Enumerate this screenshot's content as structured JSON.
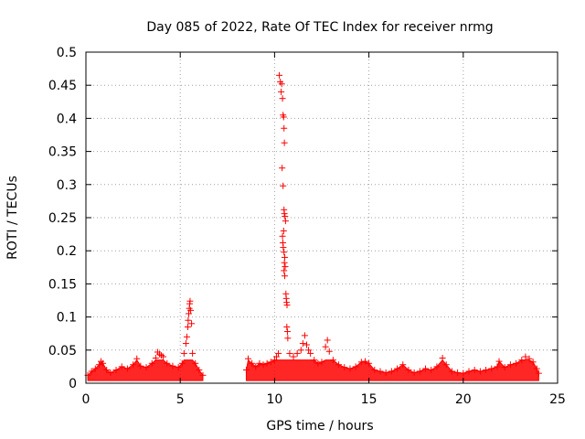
{
  "chart_data": {
    "type": "scatter",
    "title": "Day 085 of 2022, Rate Of TEC Index for receiver nrmg",
    "xlabel": "GPS time / hours",
    "ylabel": "ROTI / TECUs",
    "xlim": [
      0,
      25
    ],
    "ylim": [
      0,
      0.5
    ],
    "xticks": [
      0,
      5,
      10,
      15,
      20,
      25
    ],
    "yticks": [
      0,
      0.05,
      0.1,
      0.15,
      0.2,
      0.25,
      0.3,
      0.35,
      0.4,
      0.45,
      0.5
    ],
    "xtick_labels": [
      "0",
      "5",
      "10",
      "15",
      "20",
      "25"
    ],
    "ytick_labels": [
      "0",
      "0.05",
      "0.1",
      "0.15",
      "0.2",
      "0.25",
      "0.3",
      "0.35",
      "0.4",
      "0.45",
      "0.5"
    ],
    "grid": true,
    "marker": "+",
    "color": "#ff0000",
    "data_gap_hours": [
      6.3,
      8.4
    ],
    "series": [
      {
        "name": "ROTI",
        "points": [
          [
            0.1,
            0.012
          ],
          [
            0.3,
            0.018
          ],
          [
            0.5,
            0.022
          ],
          [
            0.7,
            0.028
          ],
          [
            0.8,
            0.033
          ],
          [
            0.9,
            0.03
          ],
          [
            1.1,
            0.02
          ],
          [
            1.3,
            0.016
          ],
          [
            1.6,
            0.02
          ],
          [
            1.9,
            0.025
          ],
          [
            2.2,
            0.022
          ],
          [
            2.5,
            0.028
          ],
          [
            2.7,
            0.037
          ],
          [
            2.9,
            0.026
          ],
          [
            3.2,
            0.024
          ],
          [
            3.5,
            0.03
          ],
          [
            3.7,
            0.038
          ],
          [
            3.8,
            0.047
          ],
          [
            3.9,
            0.044
          ],
          [
            4.0,
            0.042
          ],
          [
            4.1,
            0.04
          ],
          [
            4.3,
            0.03
          ],
          [
            4.6,
            0.026
          ],
          [
            4.9,
            0.024
          ],
          [
            5.1,
            0.03
          ],
          [
            5.2,
            0.045
          ],
          [
            5.3,
            0.06
          ],
          [
            5.35,
            0.07
          ],
          [
            5.4,
            0.085
          ],
          [
            5.42,
            0.095
          ],
          [
            5.45,
            0.105
          ],
          [
            5.48,
            0.113
          ],
          [
            5.5,
            0.12
          ],
          [
            5.52,
            0.124
          ],
          [
            5.55,
            0.11
          ],
          [
            5.6,
            0.09
          ],
          [
            5.65,
            0.045
          ],
          [
            5.8,
            0.03
          ],
          [
            6.0,
            0.02
          ],
          [
            6.2,
            0.012
          ],
          [
            8.5,
            0.02
          ],
          [
            8.6,
            0.037
          ],
          [
            8.8,
            0.03
          ],
          [
            9.0,
            0.025
          ],
          [
            9.2,
            0.03
          ],
          [
            9.4,
            0.028
          ],
          [
            9.6,
            0.03
          ],
          [
            9.8,
            0.032
          ],
          [
            10.0,
            0.035
          ],
          [
            10.1,
            0.04
          ],
          [
            10.2,
            0.045
          ],
          [
            10.25,
            0.465
          ],
          [
            10.3,
            0.455
          ],
          [
            10.35,
            0.44
          ],
          [
            10.38,
            0.452
          ],
          [
            10.42,
            0.43
          ],
          [
            10.45,
            0.405
          ],
          [
            10.48,
            0.402
          ],
          [
            10.5,
            0.385
          ],
          [
            10.52,
            0.363
          ],
          [
            10.4,
            0.325
          ],
          [
            10.45,
            0.298
          ],
          [
            10.5,
            0.262
          ],
          [
            10.52,
            0.256
          ],
          [
            10.55,
            0.252
          ],
          [
            10.58,
            0.245
          ],
          [
            10.48,
            0.23
          ],
          [
            10.42,
            0.222
          ],
          [
            10.44,
            0.212
          ],
          [
            10.46,
            0.205
          ],
          [
            10.5,
            0.198
          ],
          [
            10.54,
            0.19
          ],
          [
            10.52,
            0.182
          ],
          [
            10.56,
            0.176
          ],
          [
            10.5,
            0.17
          ],
          [
            10.54,
            0.162
          ],
          [
            10.6,
            0.135
          ],
          [
            10.62,
            0.128
          ],
          [
            10.64,
            0.122
          ],
          [
            10.66,
            0.118
          ],
          [
            10.65,
            0.085
          ],
          [
            10.68,
            0.078
          ],
          [
            10.7,
            0.068
          ],
          [
            10.8,
            0.045
          ],
          [
            11.0,
            0.04
          ],
          [
            11.2,
            0.045
          ],
          [
            11.4,
            0.05
          ],
          [
            11.5,
            0.06
          ],
          [
            11.6,
            0.072
          ],
          [
            11.7,
            0.058
          ],
          [
            11.8,
            0.05
          ],
          [
            11.9,
            0.045
          ],
          [
            12.1,
            0.035
          ],
          [
            12.3,
            0.03
          ],
          [
            12.5,
            0.032
          ],
          [
            12.7,
            0.055
          ],
          [
            12.8,
            0.065
          ],
          [
            12.9,
            0.048
          ],
          [
            13.1,
            0.035
          ],
          [
            13.4,
            0.028
          ],
          [
            13.7,
            0.024
          ],
          [
            14.0,
            0.022
          ],
          [
            14.3,
            0.025
          ],
          [
            14.6,
            0.032
          ],
          [
            14.8,
            0.033
          ],
          [
            15.0,
            0.03
          ],
          [
            15.3,
            0.02
          ],
          [
            15.6,
            0.018
          ],
          [
            15.9,
            0.016
          ],
          [
            16.2,
            0.018
          ],
          [
            16.5,
            0.022
          ],
          [
            16.8,
            0.028
          ],
          [
            17.1,
            0.02
          ],
          [
            17.4,
            0.016
          ],
          [
            17.7,
            0.018
          ],
          [
            18.0,
            0.022
          ],
          [
            18.3,
            0.02
          ],
          [
            18.6,
            0.025
          ],
          [
            18.9,
            0.038
          ],
          [
            19.1,
            0.028
          ],
          [
            19.4,
            0.018
          ],
          [
            19.7,
            0.016
          ],
          [
            20.0,
            0.015
          ],
          [
            20.3,
            0.018
          ],
          [
            20.6,
            0.02
          ],
          [
            20.9,
            0.018
          ],
          [
            21.2,
            0.02
          ],
          [
            21.5,
            0.022
          ],
          [
            21.8,
            0.025
          ],
          [
            21.9,
            0.033
          ],
          [
            22.2,
            0.024
          ],
          [
            22.5,
            0.028
          ],
          [
            22.8,
            0.03
          ],
          [
            23.1,
            0.035
          ],
          [
            23.3,
            0.04
          ],
          [
            23.5,
            0.037
          ],
          [
            23.7,
            0.032
          ],
          [
            23.9,
            0.022
          ],
          [
            24.0,
            0.015
          ]
        ]
      }
    ]
  }
}
